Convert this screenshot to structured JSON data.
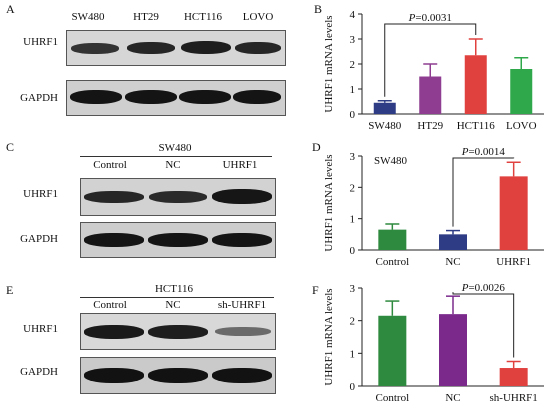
{
  "panels": {
    "A": {
      "letter": "A",
      "lanes": [
        "SW480",
        "HT29",
        "HCT116",
        "LOVO"
      ],
      "rows": [
        "UHRF1",
        "GAPDH"
      ]
    },
    "C": {
      "letter": "C",
      "group": "SW480",
      "lanes": [
        "Control",
        "NC",
        "UHRF1"
      ],
      "rows": [
        "UHRF1",
        "GAPDH"
      ]
    },
    "E": {
      "letter": "E",
      "group": "HCT116",
      "lanes": [
        "Control",
        "NC",
        "sh-UHRF1"
      ],
      "rows": [
        "UHRF1",
        "GAPDH"
      ]
    }
  },
  "charts": {
    "B": {
      "letter": "B"
    },
    "D": {
      "letter": "D"
    },
    "F": {
      "letter": "F"
    }
  },
  "chart_data": [
    {
      "type": "bar",
      "panel": "B",
      "categories": [
        "SW480",
        "HT29",
        "HCT116",
        "LOVO"
      ],
      "series": [
        {
          "values": [
            0.45,
            1.5,
            2.35,
            1.8
          ]
        }
      ],
      "errors": [
        0.08,
        0.5,
        0.65,
        0.45
      ],
      "bar_colors": [
        "#2e3c86",
        "#8e3d91",
        "#e0413f",
        "#2ea84a"
      ],
      "ylabel": "UHRF1 mRNA levels",
      "ylim": [
        0,
        4
      ],
      "yticks": [
        "0",
        "1",
        "2",
        "3",
        "4"
      ],
      "annotation": {
        "text": "P=0.0031",
        "from": "SW480",
        "to": "HCT116"
      }
    },
    {
      "type": "bar",
      "panel": "D",
      "title": "SW480",
      "categories": [
        "Control",
        "NC",
        "UHRF1"
      ],
      "series": [
        {
          "values": [
            0.65,
            0.5,
            2.35
          ]
        }
      ],
      "errors": [
        0.18,
        0.12,
        0.45
      ],
      "bar_colors": [
        "#2e8a3e",
        "#2e3c86",
        "#e0413f"
      ],
      "ylabel": "UHRF1 mRNA levels",
      "ylim": [
        0,
        3
      ],
      "yticks": [
        "0",
        "1",
        "2",
        "3"
      ],
      "annotation": {
        "text": "P=0.0014",
        "from": "NC",
        "to": "UHRF1"
      }
    },
    {
      "type": "bar",
      "panel": "F",
      "categories": [
        "Control",
        "NC",
        "sh-UHRF1"
      ],
      "series": [
        {
          "values": [
            2.15,
            2.2,
            0.55
          ]
        }
      ],
      "errors": [
        0.45,
        0.55,
        0.2
      ],
      "bar_colors": [
        "#2e8a3e",
        "#7b2a8c",
        "#e0413f"
      ],
      "ylabel": "UHRF1 mRNA levels",
      "ylim": [
        0,
        3
      ],
      "yticks": [
        "0",
        "1",
        "2",
        "3"
      ],
      "annotation": {
        "text": "P=0.0026",
        "from": "NC",
        "to": "sh-UHRF1"
      }
    }
  ]
}
